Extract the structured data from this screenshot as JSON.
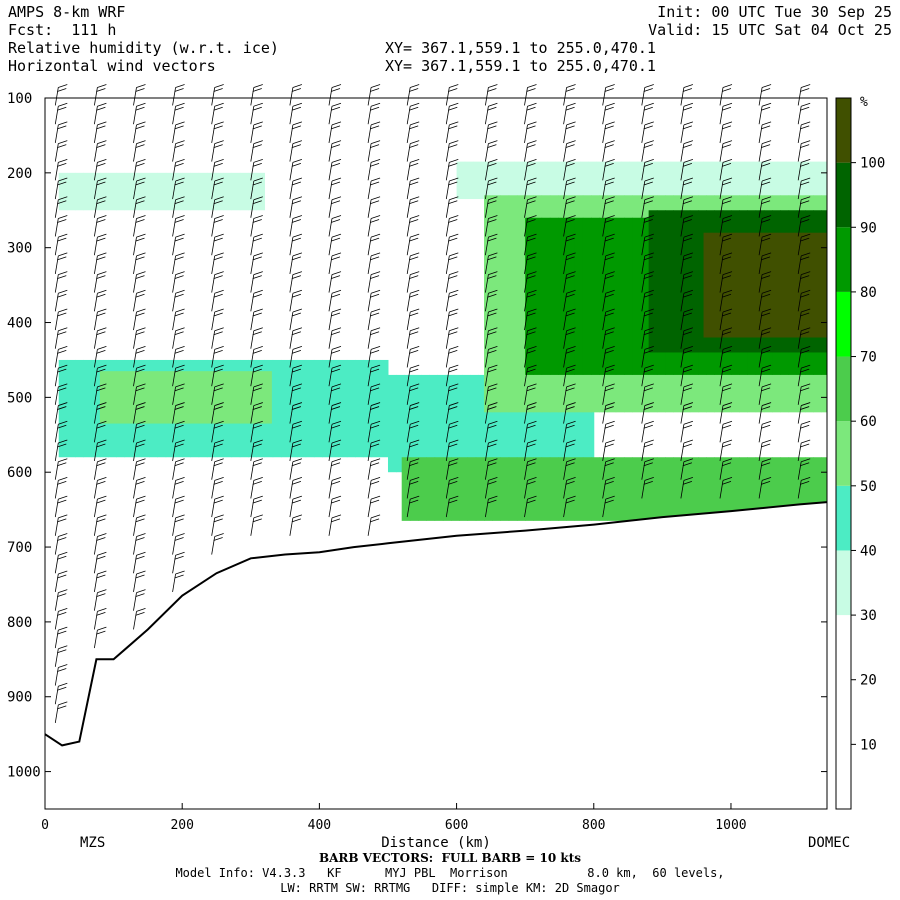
{
  "header": {
    "model": "AMPS 8-km WRF",
    "fcst": "Fcst:  111 h",
    "field1": "Relative humidity (w.r.t. ice)",
    "field2": "Horizontal wind vectors",
    "init": "Init: 00 UTC Tue 30 Sep 25",
    "valid": "Valid: 15 UTC Sat 04 Oct 25",
    "xy1": "XY= 367.1,559.1 to 255.0,470.1",
    "xy2": "XY= 367.1,559.1 to 255.0,470.1"
  },
  "footer": {
    "barb": "BARB VECTORS:  FULL BARB = 10 kts",
    "model_info": "Model Info: V4.3.3   KF      MYJ PBL  Morrison           8.0 km,  60 levels,",
    "physics": "LW: RRTM SW: RRTMG   DIFF: simple KM: 2D Smagor"
  },
  "colors": {
    "c10": "#ffffff",
    "c30": "#c8fce4",
    "c40": "#4cecc4",
    "c50": "#7ce87c",
    "c60": "#4ccc4c",
    "c70": "#00ff00",
    "c80": "#009900",
    "c90": "#006400",
    "c100": "#405000",
    "terrain_line": "#000000"
  },
  "chart_data": {
    "type": "heatmap",
    "title": "Relative humidity (w.r.t. ice)",
    "xlabel": "Distance (km)",
    "ylabel": "",
    "xlim": [
      0,
      1140
    ],
    "ylim": [
      1050,
      100
    ],
    "x_ticks": [
      "0",
      "200",
      "400",
      "600",
      "800",
      "1000"
    ],
    "y_ticks": [
      "100",
      "200",
      "300",
      "400",
      "500",
      "600",
      "700",
      "800",
      "900",
      "1000"
    ],
    "endpoints": {
      "left": "MZS",
      "right": "DOMEC"
    },
    "colorbar": {
      "unit": "%",
      "labels": [
        "10",
        "20",
        "30",
        "40",
        "50",
        "60",
        "70",
        "80",
        "90",
        "100"
      ],
      "bins": [
        {
          "from": 0,
          "to": 10,
          "color": "#ffffff"
        },
        {
          "from": 10,
          "to": 20,
          "color": "#ffffff"
        },
        {
          "from": 20,
          "to": 30,
          "color": "#ffffff"
        },
        {
          "from": 30,
          "to": 40,
          "color": "#c8fce4"
        },
        {
          "from": 40,
          "to": 50,
          "color": "#4cecc4"
        },
        {
          "from": 50,
          "to": 60,
          "color": "#7ce87c"
        },
        {
          "from": 60,
          "to": 70,
          "color": "#4ccc4c"
        },
        {
          "from": 70,
          "to": 80,
          "color": "#00ff00"
        },
        {
          "from": 80,
          "to": 90,
          "color": "#009900"
        },
        {
          "from": 90,
          "to": 100,
          "color": "#006400"
        },
        {
          "from": 100,
          "to": 110,
          "color": "#405000"
        }
      ]
    },
    "terrain": {
      "x": [
        0,
        25,
        50,
        75,
        100,
        150,
        200,
        250,
        300,
        350,
        400,
        450,
        500,
        600,
        700,
        800,
        900,
        1000,
        1100,
        1140
      ],
      "p": [
        950,
        965,
        960,
        850,
        850,
        810,
        765,
        735,
        715,
        710,
        707,
        700,
        695,
        685,
        678,
        670,
        660,
        652,
        643,
        640
      ]
    },
    "moisture_regions": [
      {
        "x": [
          20,
          320
        ],
        "p": [
          200,
          250
        ],
        "value": 35
      },
      {
        "x": [
          600,
          1140
        ],
        "p": [
          185,
          235
        ],
        "value": 35
      },
      {
        "x": [
          20,
          500
        ],
        "p": [
          450,
          580
        ],
        "value": 45
      },
      {
        "x": [
          80,
          330
        ],
        "p": [
          465,
          535
        ],
        "value": 55
      },
      {
        "x": [
          500,
          800
        ],
        "p": [
          470,
          600
        ],
        "value": 45
      },
      {
        "x": [
          520,
          1140
        ],
        "p": [
          580,
          665
        ],
        "value": 65
      },
      {
        "x": [
          640,
          1140
        ],
        "p": [
          230,
          520
        ],
        "value": 55
      },
      {
        "x": [
          700,
          1140
        ],
        "p": [
          260,
          470
        ],
        "value": 85
      },
      {
        "x": [
          880,
          1140
        ],
        "p": [
          250,
          440
        ],
        "value": 95
      },
      {
        "x": [
          960,
          1140
        ],
        "p": [
          280,
          420
        ],
        "value": 105
      }
    ]
  }
}
